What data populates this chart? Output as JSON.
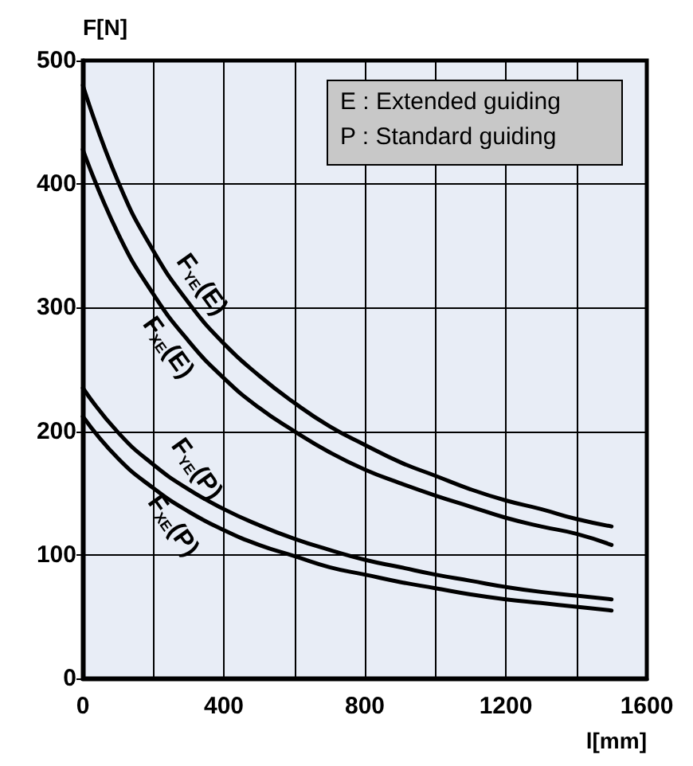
{
  "chart_data": {
    "type": "line",
    "xlabel": "l[mm]",
    "ylabel": "F[N]",
    "x": [
      0,
      100,
      200,
      300,
      400,
      500,
      600,
      700,
      800,
      900,
      1000,
      1100,
      1200,
      1300,
      1400,
      1500
    ],
    "series": [
      {
        "name": "F$_{YE}$(E)",
        "color": "#000000",
        "values": [
          480,
          402,
          346,
          304,
          271,
          245,
          223,
          204,
          189,
          175,
          164,
          153,
          144,
          137,
          129,
          123
        ]
      },
      {
        "name": "F$_{XE}$(E)",
        "color": "#000000",
        "values": [
          428,
          360,
          311,
          273,
          243,
          219,
          200,
          183,
          169,
          158,
          148,
          139,
          130,
          123,
          117,
          108
        ]
      },
      {
        "name": "F$_{YE}$(P)",
        "color": "#000000",
        "values": [
          235,
          199,
          173,
          153,
          137,
          124,
          113,
          104,
          96,
          90,
          84,
          79,
          74,
          70,
          67,
          64
        ]
      },
      {
        "name": "F$_{XE}$(P)",
        "color": "#000000",
        "values": [
          212,
          178,
          154,
          135,
          120,
          108,
          99,
          90,
          84,
          78,
          73,
          68,
          64,
          61,
          58,
          55
        ]
      }
    ],
    "xlim": [
      0,
      1600
    ],
    "xticks": [
      0,
      {
        "value": 200,
        "label": null
      },
      400,
      {
        "value": 600,
        "label": null
      },
      800,
      {
        "value": 1000,
        "label": null
      },
      1200,
      {
        "value": 1400,
        "label": null
      },
      1600
    ],
    "ylim": [
      0,
      500
    ],
    "yticks": [
      0,
      100,
      200,
      300,
      400,
      500
    ],
    "grid": true,
    "marker": "none",
    "line_style": "solid",
    "annotations": [
      "E : Extended guiding",
      "P : Standard guiding"
    ]
  }
}
